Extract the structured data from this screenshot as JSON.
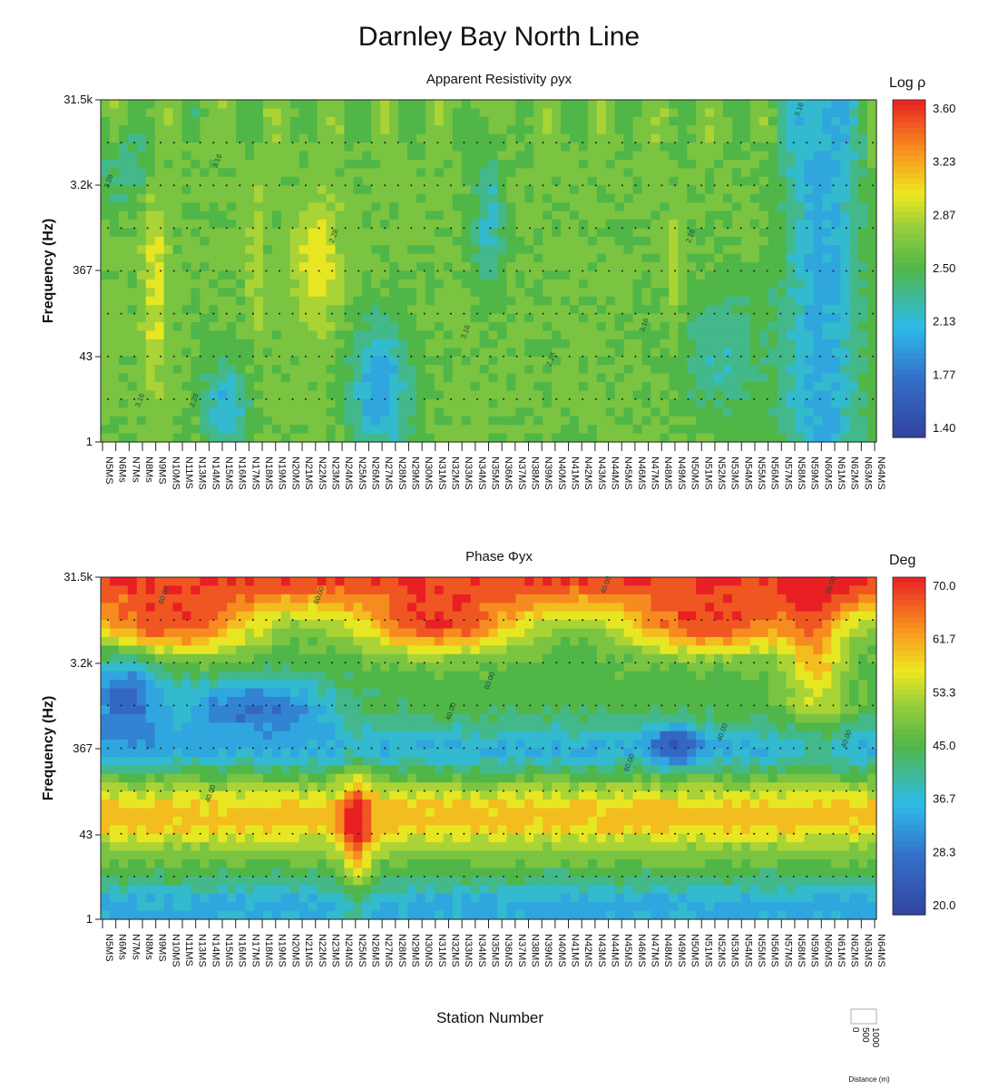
{
  "figure": {
    "title": "Darnley Bay North Line"
  },
  "chart_data": [
    {
      "type": "heatmap",
      "title": "Apparent Resistivity ρyx",
      "ylabel": "Frequency (Hz)",
      "y_ticks": [
        "31.5k",
        "3.2k",
        "367",
        "43",
        "1"
      ],
      "y_scale": "log",
      "colorbar": {
        "title": "Log ρ",
        "ticks": [
          "3.60",
          "3.23",
          "2.87",
          "2.50",
          "2.13",
          "1.77",
          "1.40"
        ],
        "range": [
          1.4,
          3.6
        ]
      },
      "stations": [
        "N5MS",
        "N6Ms",
        "N7Ms",
        "N8Ms",
        "N9MS",
        "N10MS",
        "N11MS",
        "N13MS",
        "N14MS",
        "N15MS",
        "N16MS",
        "N17MS",
        "N18MS",
        "N19MS",
        "N20MS",
        "N21MS",
        "N22MS",
        "N23MS",
        "N24MS",
        "N25MS",
        "N26MS",
        "N27MS",
        "N28MS",
        "N29MS",
        "N30MS",
        "N31MS",
        "N32MS",
        "N33MS",
        "N34MS",
        "N35MS",
        "N36MS",
        "N37MS",
        "N38MS",
        "N39MS",
        "N40MS",
        "N41MS",
        "N42MS",
        "N43MS",
        "N44MS",
        "N45MS",
        "N46MS",
        "N47MS",
        "N48MS",
        "N49MS",
        "N50MS",
        "N51MS",
        "N52MS",
        "N53MS",
        "N54MS",
        "N55MS",
        "N56MS",
        "N57MS",
        "N58MS",
        "N59MS",
        "N60MS",
        "N61MS",
        "N62MS",
        "N63MS",
        "N64MS"
      ],
      "contour_labels": [
        "2.28",
        "3.16"
      ],
      "grid": false
    },
    {
      "type": "heatmap",
      "title": "Phase Φyx",
      "xlabel": "Station Number",
      "ylabel": "Frequency (Hz)",
      "y_ticks": [
        "31.5k",
        "3.2k",
        "367",
        "43",
        "1"
      ],
      "y_scale": "log",
      "colorbar": {
        "title": "Deg",
        "ticks": [
          "70.0",
          "61.7",
          "53.3",
          "45.0",
          "36.7",
          "28.3",
          "20.0"
        ],
        "range": [
          20.0,
          70.0
        ]
      },
      "stations": [
        "N5MS",
        "N6Ms",
        "N7Ms",
        "N8Ms",
        "N9MS",
        "N10MS",
        "N11MS",
        "N13MS",
        "N14MS",
        "N15MS",
        "N16MS",
        "N17MS",
        "N18MS",
        "N19MS",
        "N20MS",
        "N21MS",
        "N22MS",
        "N23MS",
        "N24MS",
        "N25MS",
        "N26MS",
        "N27MS",
        "N28MS",
        "N29MS",
        "N30MS",
        "N31MS",
        "N32MS",
        "N33MS",
        "N34MS",
        "N35MS",
        "N36MS",
        "N37MS",
        "N38MS",
        "N39MS",
        "N40MS",
        "N41MS",
        "N42MS",
        "N43MS",
        "N44MS",
        "N45MS",
        "N46MS",
        "N47MS",
        "N48MS",
        "N49MS",
        "N50MS",
        "N51MS",
        "N52MS",
        "N53MS",
        "N54MS",
        "N55MS",
        "N56MS",
        "N57MS",
        "N58MS",
        "N59MS",
        "N60MS",
        "N61MS",
        "N62MS",
        "N63MS",
        "N64MS"
      ],
      "contour_labels": [
        "60.00",
        "40.00"
      ],
      "grid": false
    }
  ],
  "scale_bar": {
    "ticks": [
      "0",
      "500",
      "1000"
    ],
    "label": "Distance (m)"
  }
}
